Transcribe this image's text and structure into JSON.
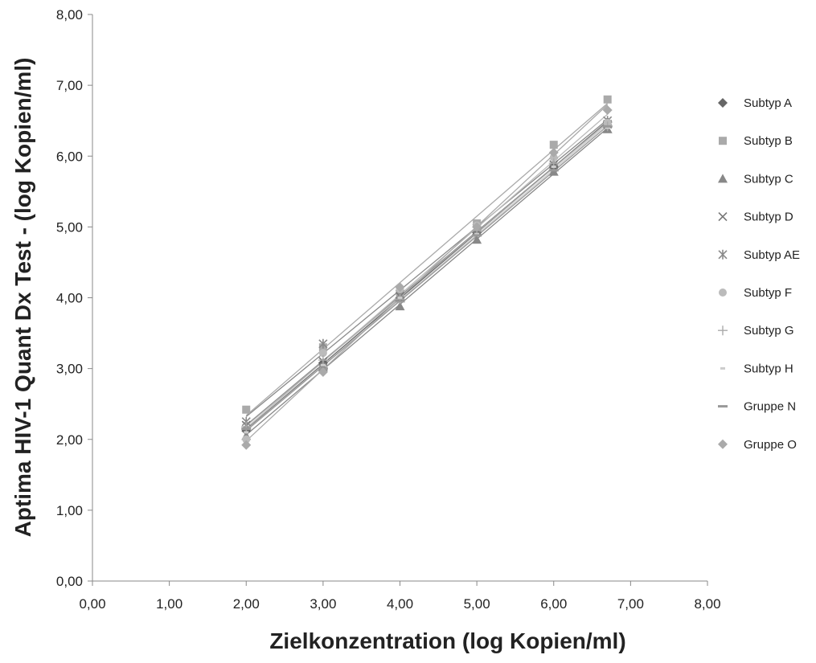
{
  "chart_data": {
    "type": "scatter",
    "xlabel": "Zielkonzentration (log Kopien/ml)",
    "ylabel": "Aptima HIV-1 Quant Dx Test - (log Kopien/ml)",
    "xlim": [
      0,
      8
    ],
    "ylim": [
      0,
      8
    ],
    "x_ticks": [
      "0,00",
      "1,00",
      "2,00",
      "3,00",
      "4,00",
      "5,00",
      "6,00",
      "7,00",
      "8,00"
    ],
    "y_ticks": [
      "0,00",
      "1,00",
      "2,00",
      "3,00",
      "4,00",
      "5,00",
      "6,00",
      "7,00",
      "8,00"
    ],
    "grid": false,
    "legend_position": "right",
    "trendlines": true,
    "x": [
      2,
      3,
      4,
      5,
      6,
      6.7
    ],
    "series": [
      {
        "name": "Subtyp A",
        "marker": "diamond",
        "color": "#666666",
        "values": [
          2.12,
          3.08,
          4.0,
          4.92,
          5.85,
          6.48
        ]
      },
      {
        "name": "Subtyp B",
        "marker": "square",
        "color": "#aaaaaa",
        "values": [
          2.42,
          3.3,
          4.08,
          5.05,
          6.16,
          6.8
        ]
      },
      {
        "name": "Subtyp C",
        "marker": "triangle",
        "color": "#888888",
        "values": [
          2.05,
          3.02,
          3.88,
          4.82,
          5.78,
          6.38
        ]
      },
      {
        "name": "Subtyp D",
        "marker": "x",
        "color": "#777777",
        "values": [
          2.2,
          3.1,
          4.02,
          4.95,
          5.88,
          6.45
        ]
      },
      {
        "name": "Subtyp AE",
        "marker": "star",
        "color": "#8a8a8a",
        "values": [
          2.25,
          3.35,
          4.05,
          4.98,
          5.92,
          6.5
        ]
      },
      {
        "name": "Subtyp F",
        "marker": "circle",
        "color": "#bbbbbb",
        "values": [
          2.0,
          3.22,
          4.12,
          5.02,
          5.98,
          6.47
        ]
      },
      {
        "name": "Subtyp G",
        "marker": "plus",
        "color": "#aaaaaa",
        "values": [
          2.18,
          3.12,
          3.98,
          4.95,
          5.9,
          6.42
        ]
      },
      {
        "name": "Subtyp H",
        "marker": "dash",
        "color": "#cccccc",
        "values": [
          2.1,
          3.05,
          4.0,
          4.9,
          5.85,
          6.4
        ]
      },
      {
        "name": "Gruppe N",
        "marker": "longdash",
        "color": "#999999",
        "values": [
          2.15,
          3.0,
          3.95,
          4.88,
          5.8,
          6.42
        ]
      },
      {
        "name": "Gruppe O",
        "marker": "diamond",
        "color": "#aaaaaa",
        "values": [
          1.92,
          2.95,
          4.15,
          5.0,
          6.05,
          6.65
        ]
      }
    ]
  }
}
